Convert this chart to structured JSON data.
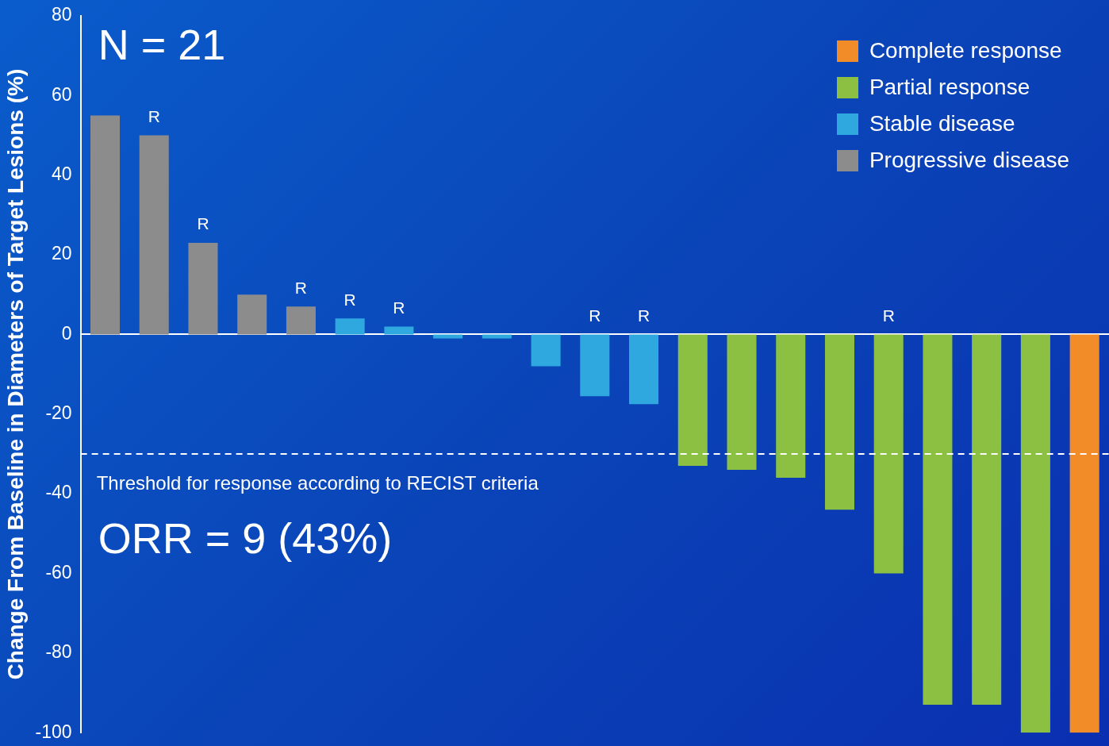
{
  "chart_data": {
    "type": "bar",
    "ylabel": "Change From Baseline in Diameters of Target Lesions (%)",
    "categories": [
      null,
      null,
      null,
      null,
      null,
      null,
      null,
      null,
      null,
      null,
      null,
      null,
      null,
      null,
      null,
      null,
      null,
      null,
      null,
      null,
      null
    ],
    "series": [
      {
        "name": "Complete response",
        "color": "#f28c28",
        "values": [
          null,
          null,
          null,
          null,
          null,
          null,
          null,
          null,
          null,
          null,
          null,
          null,
          null,
          null,
          null,
          null,
          null,
          null,
          null,
          null,
          -100
        ],
        "value_labels": [
          null,
          null,
          null,
          null,
          null,
          null,
          null,
          null,
          null,
          null,
          null,
          null,
          null,
          null,
          null,
          null,
          null,
          null,
          null,
          null,
          null
        ]
      },
      {
        "name": "Partial response",
        "color": "#8cc043",
        "values": [
          null,
          null,
          null,
          null,
          null,
          null,
          null,
          null,
          null,
          null,
          null,
          null,
          -33,
          -34,
          -36,
          -44,
          -60,
          -93,
          -93,
          -100,
          null
        ],
        "value_labels": [
          null,
          null,
          null,
          null,
          null,
          null,
          null,
          null,
          null,
          null,
          null,
          null,
          null,
          null,
          null,
          null,
          "R",
          null,
          null,
          null,
          null
        ]
      },
      {
        "name": "Stable disease",
        "color": "#2fa8e0",
        "values": [
          null,
          null,
          null,
          null,
          null,
          4,
          2,
          -1,
          -1,
          -8,
          -15.5,
          -17.5,
          null,
          null,
          null,
          null,
          null,
          null,
          null,
          null,
          null
        ],
        "value_labels": [
          null,
          null,
          null,
          null,
          null,
          "R",
          "R",
          null,
          null,
          null,
          "R",
          "R",
          null,
          null,
          null,
          null,
          null,
          null,
          null,
          null,
          null
        ]
      },
      {
        "name": "Progressive disease",
        "color": "#8c8c8c",
        "values": [
          55,
          50,
          23,
          10,
          7,
          null,
          null,
          null,
          null,
          null,
          null,
          null,
          null,
          null,
          null,
          null,
          null,
          null,
          null,
          null,
          null
        ],
        "value_labels": [
          null,
          "R",
          "R",
          null,
          "R",
          null,
          null,
          null,
          null,
          null,
          null,
          null,
          null,
          null,
          null,
          null,
          null,
          null,
          null,
          null,
          null
        ]
      }
    ],
    "ylim": [
      -100,
      80
    ],
    "yticks": [
      -100,
      -80,
      -60,
      -40,
      -20,
      0,
      20,
      40,
      60,
      80
    ],
    "legend": "top right",
    "tick_labels": "y",
    "ref_lines": [
      {
        "axis": "y",
        "value": -30,
        "label": "Threshold for response according to RECIST criteria",
        "color": "#ffffff",
        "line_style": "dashed"
      }
    ],
    "annotations": [
      "N = 21",
      "ORR = 9 (43%)"
    ]
  }
}
